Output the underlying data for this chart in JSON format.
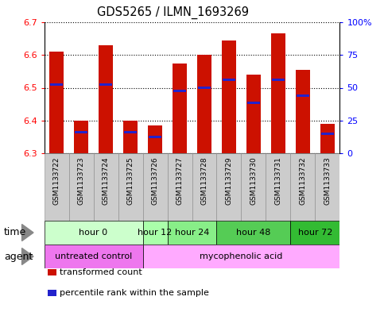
{
  "title": "GDS5265 / ILMN_1693269",
  "samples": [
    "GSM1133722",
    "GSM1133723",
    "GSM1133724",
    "GSM1133725",
    "GSM1133726",
    "GSM1133727",
    "GSM1133728",
    "GSM1133729",
    "GSM1133730",
    "GSM1133731",
    "GSM1133732",
    "GSM1133733"
  ],
  "bar_bottoms": [
    6.3,
    6.3,
    6.3,
    6.3,
    6.3,
    6.3,
    6.3,
    6.3,
    6.3,
    6.3,
    6.3,
    6.3
  ],
  "bar_tops": [
    6.61,
    6.4,
    6.63,
    6.4,
    6.385,
    6.575,
    6.6,
    6.645,
    6.54,
    6.665,
    6.555,
    6.39
  ],
  "percentile_values": [
    6.51,
    6.365,
    6.51,
    6.365,
    6.35,
    6.49,
    6.5,
    6.525,
    6.455,
    6.525,
    6.475,
    6.36
  ],
  "ylim_left": [
    6.3,
    6.7
  ],
  "ylim_right": [
    0,
    100
  ],
  "yticks_left": [
    6.3,
    6.4,
    6.5,
    6.6,
    6.7
  ],
  "yticks_right": [
    0,
    25,
    50,
    75,
    100
  ],
  "ytick_labels_right": [
    "0",
    "25",
    "50",
    "75",
    "100%"
  ],
  "bar_color": "#cc1100",
  "percentile_color": "#2222cc",
  "grid_color": "#000000",
  "plot_bg": "#ffffff",
  "time_groups": [
    {
      "label": "hour 0",
      "start": 0,
      "end": 3,
      "color": "#ccffcc"
    },
    {
      "label": "hour 12",
      "start": 4,
      "end": 4,
      "color": "#aaffaa"
    },
    {
      "label": "hour 24",
      "start": 5,
      "end": 6,
      "color": "#88ee88"
    },
    {
      "label": "hour 48",
      "start": 7,
      "end": 9,
      "color": "#55cc55"
    },
    {
      "label": "hour 72",
      "start": 10,
      "end": 11,
      "color": "#33bb33"
    }
  ],
  "agent_groups": [
    {
      "label": "untreated control",
      "start": 0,
      "end": 3,
      "color": "#ee77ee"
    },
    {
      "label": "mycophenolic acid",
      "start": 4,
      "end": 11,
      "color": "#ffaaff"
    }
  ],
  "legend_items": [
    {
      "label": "transformed count",
      "color": "#cc1100"
    },
    {
      "label": "percentile rank within the sample",
      "color": "#2222cc"
    }
  ],
  "time_label": "time",
  "agent_label": "agent",
  "sample_bg_color": "#cccccc",
  "figsize": [
    4.83,
    3.93
  ],
  "dpi": 100
}
